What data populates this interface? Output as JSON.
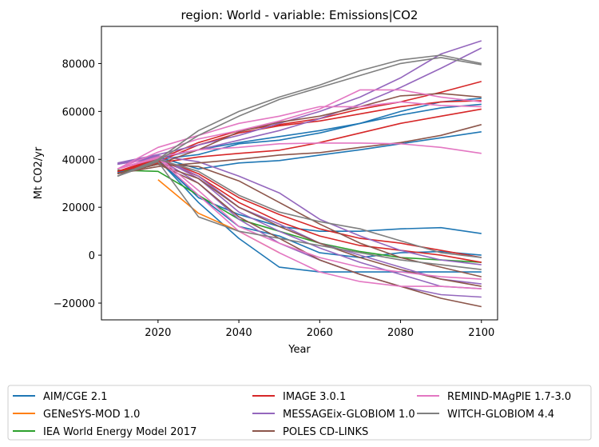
{
  "chart_data": {
    "type": "line",
    "title": "region: World - variable: Emissions|CO2",
    "xlabel": "Year",
    "ylabel": "Mt CO2/yr",
    "xlim": [
      2006,
      2104
    ],
    "ylim": [
      -27000,
      95500
    ],
    "xticks": [
      2020,
      2040,
      2060,
      2080,
      2100
    ],
    "yticks": [
      -20000,
      0,
      20000,
      40000,
      60000,
      80000
    ],
    "grid": false,
    "legend_position": "bottom",
    "legend": [
      {
        "name": "AIM/CGE 2.1",
        "color": "#1f77b4"
      },
      {
        "name": "GENeSYS-MOD 1.0",
        "color": "#ff7f0e"
      },
      {
        "name": "IEA World Energy Model 2017",
        "color": "#2ca02c"
      },
      {
        "name": "IMAGE 3.0.1",
        "color": "#d62728"
      },
      {
        "name": "MESSAGEix-GLOBIOM 1.0",
        "color": "#9467bd"
      },
      {
        "name": "POLES CD-LINKS",
        "color": "#8c564b"
      },
      {
        "name": "REMIND-MAgPIE 1.7-3.0",
        "color": "#e377c2"
      },
      {
        "name": "WITCH-GLOBIOM 4.4",
        "color": "#7f7f7f"
      }
    ],
    "series": [
      {
        "legend_index": 0,
        "x": [
          2010,
          2020,
          2030,
          2040,
          2050,
          2060,
          2070,
          2080,
          2090,
          2100
        ],
        "y": [
          34000,
          41000,
          36000,
          38500,
          39500,
          41800,
          44000,
          46500,
          49000,
          51500
        ]
      },
      {
        "legend_index": 0,
        "x": [
          2010,
          2020,
          2030,
          2040,
          2050,
          2060,
          2070,
          2080,
          2090,
          2100
        ],
        "y": [
          34500,
          40500,
          44000,
          47000,
          49500,
          52000,
          55000,
          58500,
          61500,
          63000
        ]
      },
      {
        "legend_index": 0,
        "x": [
          2010,
          2020,
          2030,
          2040,
          2050,
          2060,
          2070,
          2080,
          2090,
          2100
        ],
        "y": [
          34000,
          40000,
          42000,
          46500,
          48000,
          51000,
          55000,
          60000,
          64000,
          65500
        ]
      },
      {
        "legend_index": 0,
        "x": [
          2010,
          2020,
          2030,
          2040,
          2050,
          2060,
          2070,
          2080,
          2090,
          2100
        ],
        "y": [
          34000,
          40000,
          24000,
          17000,
          12000,
          10000,
          10000,
          11000,
          11500,
          9000
        ]
      },
      {
        "legend_index": 0,
        "x": [
          2010,
          2020,
          2030,
          2040,
          2050,
          2060,
          2070,
          2080,
          2090,
          2100
        ],
        "y": [
          34000,
          40000,
          25000,
          12000,
          8000,
          1000,
          -1000,
          1000,
          1500,
          0
        ]
      },
      {
        "legend_index": 0,
        "x": [
          2010,
          2020,
          2030,
          2040,
          2050,
          2060,
          2070,
          2080,
          2090,
          2100
        ],
        "y": [
          34000,
          40000,
          22000,
          7000,
          -5000,
          -7000,
          -7000,
          -7000,
          -7000,
          -7000
        ]
      },
      {
        "legend_index": 1,
        "x": [
          2020,
          2030,
          2040,
          2050
        ],
        "y": [
          31500,
          17500,
          10000,
          1000
        ]
      },
      {
        "legend_index": 2,
        "x": [
          2010,
          2020,
          2030,
          2040,
          2050,
          2060,
          2070,
          2080,
          2090,
          2100
        ],
        "y": [
          35500,
          35000,
          25000,
          15000,
          10000,
          5000,
          1500,
          -1000,
          -2000,
          -3000
        ]
      },
      {
        "legend_index": 3,
        "x": [
          2010,
          2020,
          2030,
          2040,
          2050,
          2060,
          2070,
          2080,
          2090,
          2100
        ],
        "y": [
          35000,
          38500,
          41000,
          42500,
          43800,
          47000,
          51000,
          55000,
          58000,
          61000
        ]
      },
      {
        "legend_index": 3,
        "x": [
          2010,
          2020,
          2030,
          2040,
          2050,
          2060,
          2070,
          2080,
          2090,
          2100
        ],
        "y": [
          35000,
          39000,
          46000,
          51000,
          54000,
          56000,
          59000,
          62000,
          64000,
          64500
        ]
      },
      {
        "legend_index": 3,
        "x": [
          2010,
          2020,
          2030,
          2040,
          2050,
          2060,
          2070,
          2080,
          2090,
          2100
        ],
        "y": [
          35000,
          40000,
          47000,
          52000,
          54500,
          57000,
          61000,
          64000,
          68000,
          72500
        ]
      },
      {
        "legend_index": 3,
        "x": [
          2010,
          2020,
          2030,
          2040,
          2050,
          2060,
          2070,
          2080,
          2090,
          2100
        ],
        "y": [
          35000,
          40500,
          34000,
          24000,
          17000,
          11000,
          7000,
          5000,
          2000,
          -1000
        ]
      },
      {
        "legend_index": 3,
        "x": [
          2010,
          2020,
          2030,
          2040,
          2050,
          2060,
          2070,
          2080,
          2090,
          2100
        ],
        "y": [
          35000,
          40000,
          33000,
          22000,
          14000,
          8000,
          4000,
          2000,
          0,
          -3000
        ]
      },
      {
        "legend_index": 4,
        "x": [
          2010,
          2020,
          2030,
          2040,
          2050,
          2060,
          2070,
          2080,
          2090,
          2100
        ],
        "y": [
          38500,
          42000,
          46000,
          50000,
          55000,
          60000,
          66000,
          74000,
          84000,
          89500
        ]
      },
      {
        "legend_index": 4,
        "x": [
          2010,
          2020,
          2030,
          2040,
          2050,
          2060,
          2070,
          2080,
          2090,
          2100
        ],
        "y": [
          38000,
          41000,
          44000,
          48000,
          52000,
          57000,
          63000,
          70000,
          78000,
          86500
        ]
      },
      {
        "legend_index": 4,
        "x": [
          2010,
          2020,
          2030,
          2040,
          2050,
          2060,
          2070,
          2080,
          2090,
          2100
        ],
        "y": [
          38000,
          41500,
          39000,
          33000,
          26000,
          15000,
          8000,
          2000,
          -2000,
          -4000
        ]
      },
      {
        "legend_index": 4,
        "x": [
          2010,
          2020,
          2030,
          2040,
          2050,
          2060,
          2070,
          2080,
          2090,
          2100
        ],
        "y": [
          38000,
          41000,
          33000,
          20000,
          13000,
          5000,
          0,
          -5000,
          -10000,
          -12000
        ]
      },
      {
        "legend_index": 4,
        "x": [
          2010,
          2020,
          2030,
          2040,
          2050,
          2060,
          2070,
          2080,
          2090,
          2100
        ],
        "y": [
          38000,
          41000,
          32000,
          18000,
          10000,
          3000,
          -3000,
          -8000,
          -13000,
          -14000
        ]
      },
      {
        "legend_index": 4,
        "x": [
          2010,
          2020,
          2030,
          2040,
          2050,
          2060,
          2070,
          2080,
          2090,
          2100
        ],
        "y": [
          38000,
          40500,
          30000,
          15000,
          5000,
          -2000,
          -8000,
          -13000,
          -16500,
          -17500
        ]
      },
      {
        "legend_index": 5,
        "x": [
          2010,
          2020,
          2030,
          2040,
          2050,
          2060,
          2070,
          2080,
          2090,
          2100
        ],
        "y": [
          34000,
          37000,
          38500,
          40000,
          41800,
          42800,
          45000,
          47000,
          50000,
          54500
        ]
      },
      {
        "legend_index": 5,
        "x": [
          2010,
          2020,
          2030,
          2040,
          2050,
          2060,
          2070,
          2080,
          2090,
          2100
        ],
        "y": [
          34000,
          38000,
          44000,
          51500,
          55500,
          58000,
          62000,
          66500,
          67500,
          66000
        ]
      },
      {
        "legend_index": 5,
        "x": [
          2010,
          2020,
          2030,
          2040,
          2050,
          2060,
          2070,
          2080,
          2090,
          2100
        ],
        "y": [
          34000,
          38000,
          37000,
          31000,
          22000,
          13000,
          5000,
          -1000,
          -5000,
          -9000
        ]
      },
      {
        "legend_index": 5,
        "x": [
          2010,
          2020,
          2030,
          2040,
          2050,
          2060,
          2070,
          2080,
          2090,
          2100
        ],
        "y": [
          34000,
          38000,
          32000,
          20000,
          12000,
          5000,
          -1000,
          -6000,
          -10000,
          -13000
        ]
      },
      {
        "legend_index": 5,
        "x": [
          2010,
          2020,
          2030,
          2040,
          2050,
          2060,
          2070,
          2080,
          2090,
          2100
        ],
        "y": [
          34000,
          38000,
          30000,
          16000,
          7000,
          -2000,
          -8000,
          -13000,
          -18000,
          -21500
        ]
      },
      {
        "legend_index": 6,
        "x": [
          2010,
          2020,
          2030,
          2040,
          2050,
          2060,
          2070,
          2080,
          2090,
          2100
        ],
        "y": [
          36000,
          45000,
          50000,
          55000,
          58000,
          62000,
          62000,
          64000,
          62500,
          62000
        ]
      },
      {
        "legend_index": 6,
        "x": [
          2010,
          2020,
          2030,
          2040,
          2050,
          2060,
          2070,
          2080,
          2090,
          2100
        ],
        "y": [
          36000,
          43000,
          48500,
          52000,
          56000,
          61000,
          69000,
          69000,
          66000,
          64000
        ]
      },
      {
        "legend_index": 6,
        "x": [
          2010,
          2020,
          2030,
          2040,
          2050,
          2060,
          2070,
          2080,
          2090,
          2100
        ],
        "y": [
          36000,
          41000,
          44000,
          45000,
          46500,
          46800,
          46800,
          46500,
          45000,
          42500
        ]
      },
      {
        "legend_index": 6,
        "x": [
          2010,
          2020,
          2030,
          2040,
          2050,
          2060,
          2070,
          2080,
          2090,
          2100
        ],
        "y": [
          36000,
          41000,
          27000,
          12000,
          5000,
          -1000,
          -5000,
          -7000,
          -9000,
          -10000
        ]
      },
      {
        "legend_index": 6,
        "x": [
          2010,
          2020,
          2030,
          2040,
          2050,
          2060,
          2070,
          2080,
          2090,
          2100
        ],
        "y": [
          36000,
          40500,
          25000,
          10000,
          1000,
          -7000,
          -11000,
          -13000,
          -13000,
          -14000
        ]
      },
      {
        "legend_index": 7,
        "x": [
          2010,
          2020,
          2030,
          2040,
          2050,
          2060,
          2070,
          2080,
          2090,
          2100
        ],
        "y": [
          33000,
          40000,
          52000,
          60000,
          66000,
          71000,
          77000,
          81500,
          83500,
          80000
        ]
      },
      {
        "legend_index": 7,
        "x": [
          2010,
          2020,
          2030,
          2040,
          2050,
          2060,
          2070,
          2080,
          2090,
          2100
        ],
        "y": [
          33000,
          39500,
          50000,
          58000,
          65000,
          70000,
          75000,
          80000,
          82500,
          79500
        ]
      },
      {
        "legend_index": 7,
        "x": [
          2010,
          2020,
          2030,
          2040,
          2050,
          2060,
          2070,
          2080,
          2090,
          2100
        ],
        "y": [
          33000,
          40000,
          35000,
          25000,
          18000,
          14000,
          11000,
          6000,
          1000,
          -1000
        ]
      },
      {
        "legend_index": 7,
        "x": [
          2010,
          2020,
          2030,
          2040,
          2050,
          2060,
          2070,
          2080,
          2090,
          2100
        ],
        "y": [
          33000,
          39000,
          16000,
          10000,
          7000,
          4000,
          1000,
          -2000,
          -4000,
          -6000
        ]
      }
    ]
  }
}
